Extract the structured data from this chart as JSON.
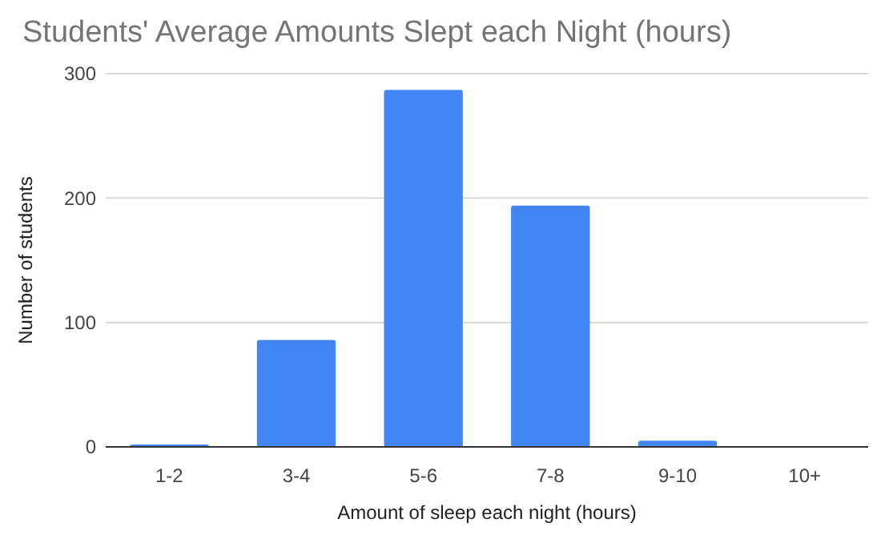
{
  "chart_data": {
    "type": "bar",
    "title": "Students' Average Amounts Slept each Night (hours)",
    "xlabel": "Amount of sleep each night (hours)",
    "ylabel": "Number of students",
    "categories": [
      "1-2",
      "3-4",
      "5-6",
      "7-8",
      "9-10",
      "10+"
    ],
    "values": [
      2,
      86,
      287,
      194,
      5,
      0
    ],
    "color": "#4285f4",
    "ylim": [
      0,
      300
    ],
    "yticks": [
      0,
      100,
      200,
      300
    ],
    "grid": "y"
  }
}
